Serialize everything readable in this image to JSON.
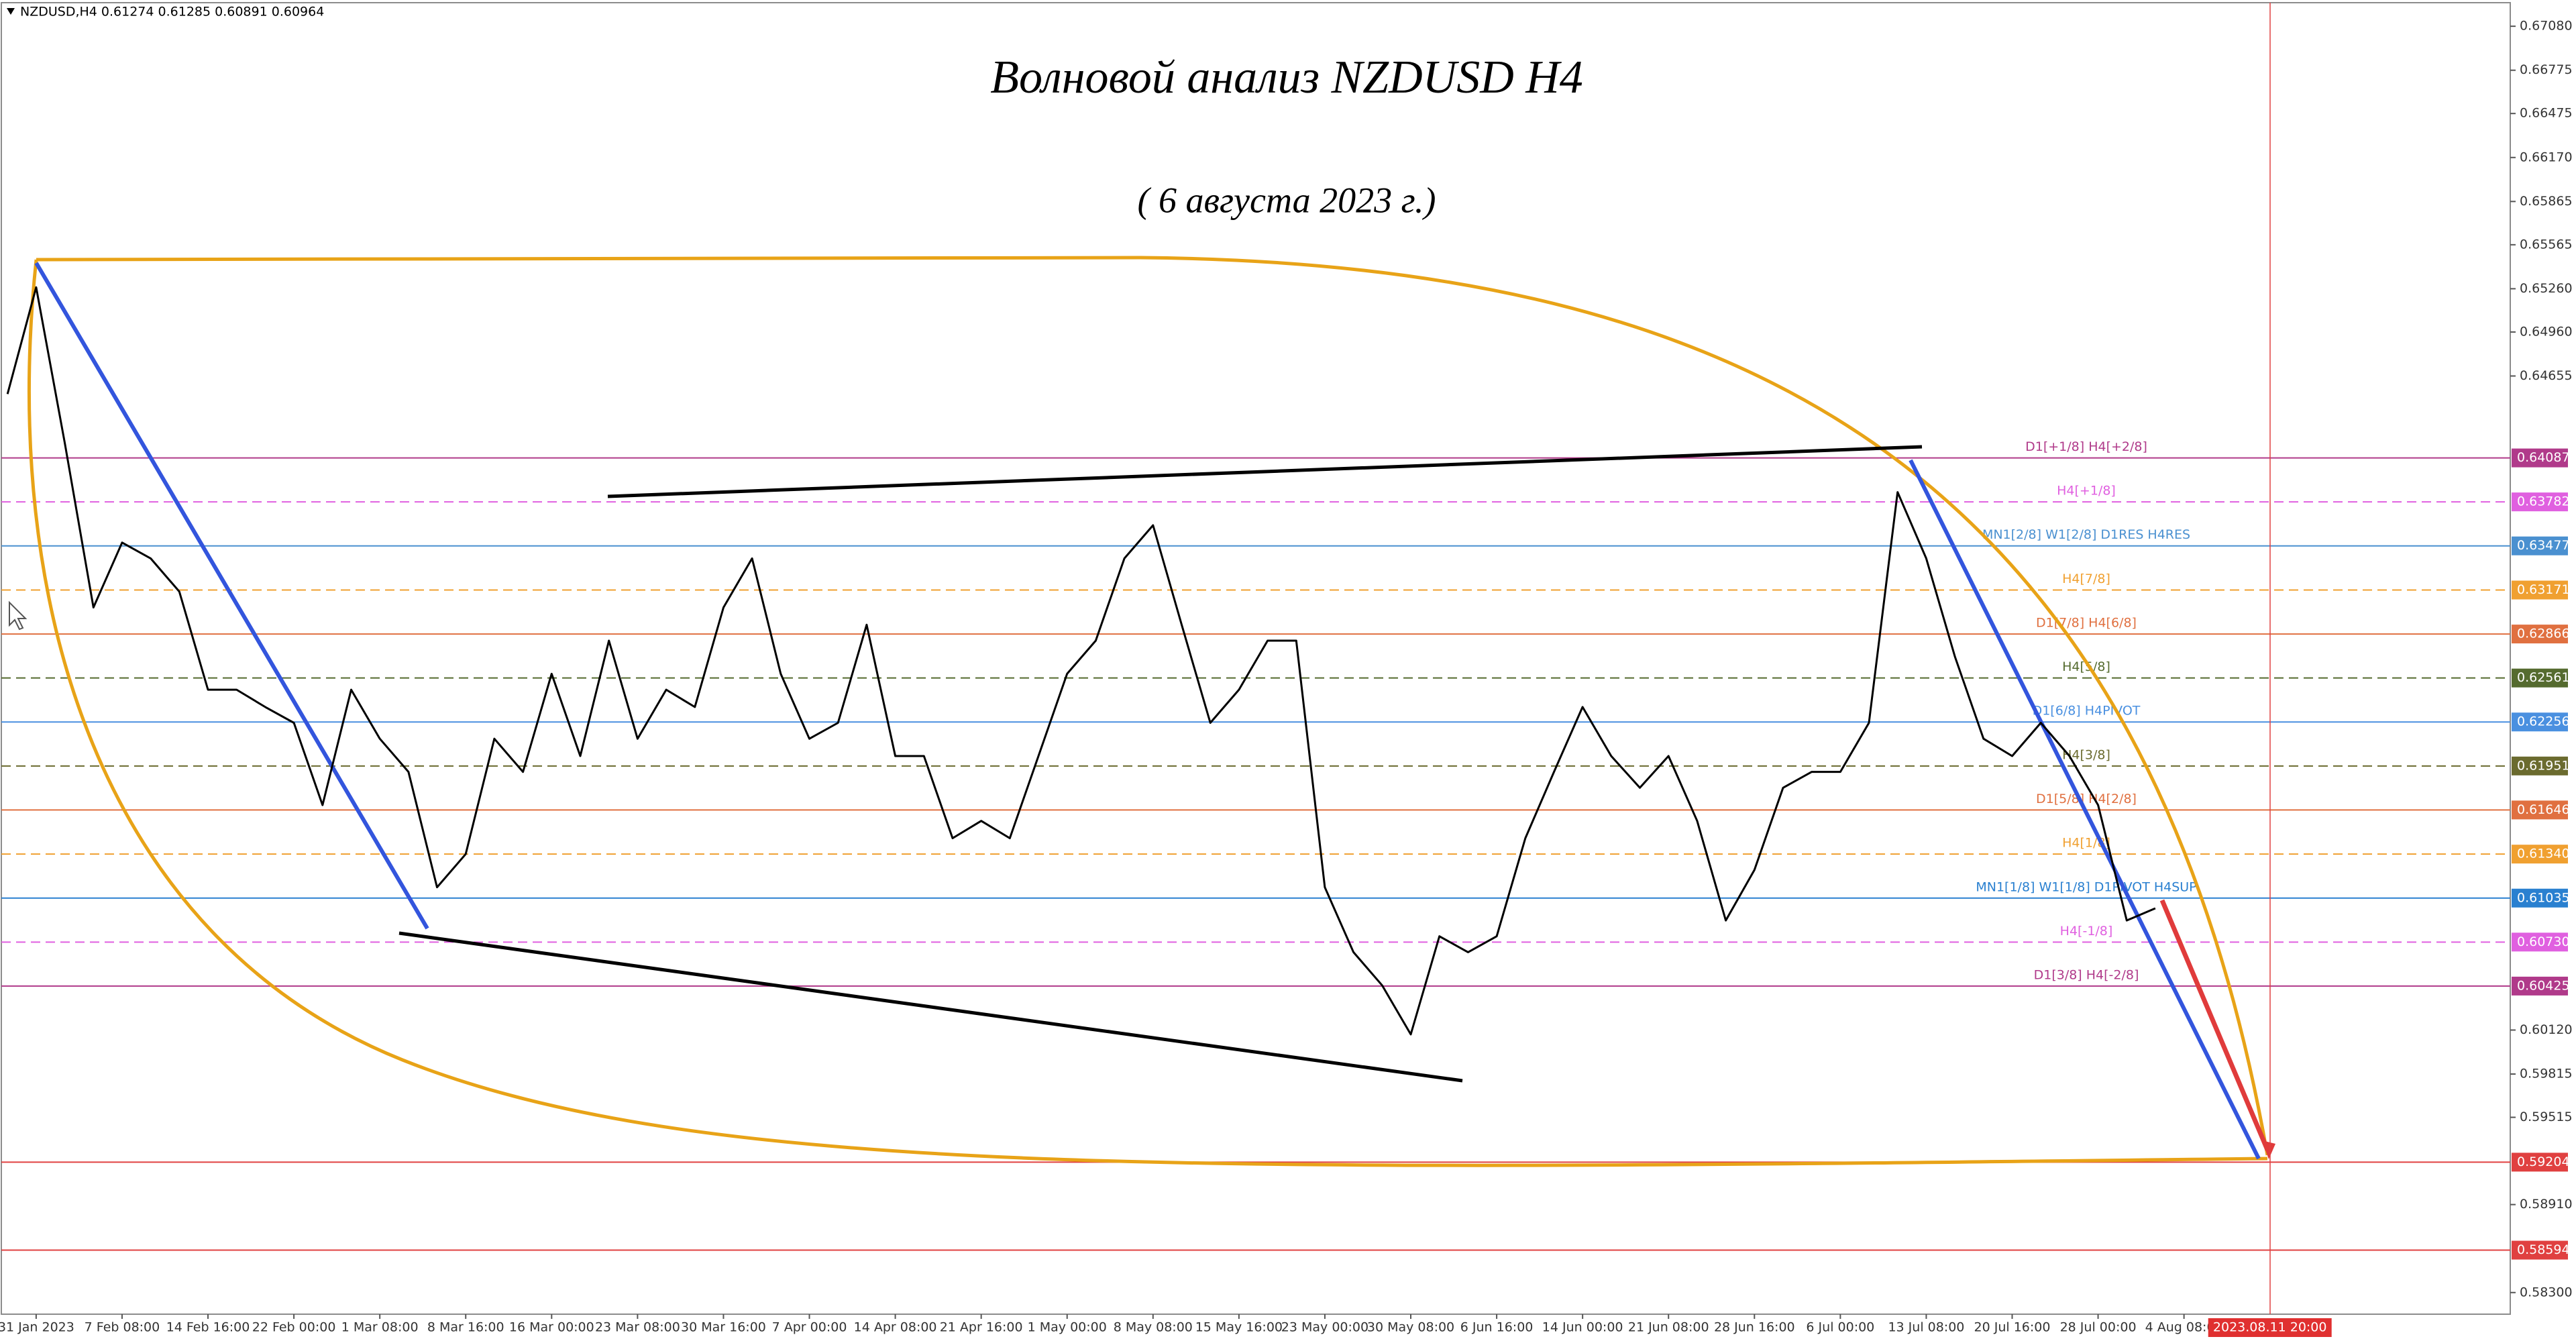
{
  "chart_data": {
    "type": "line",
    "header": "NZDUSD,H4  0.61274 0.61285 0.60891 0.60964",
    "title": "Волновой анализ NZDUSD H4",
    "subtitle": "( 6 августа 2023 г.)",
    "color": "#000000",
    "categories": [
      null,
      "31 Jan 2023",
      null,
      null,
      "7 Feb 08:00",
      null,
      null,
      "14 Feb 16:00",
      null,
      null,
      "22 Feb 00:00",
      null,
      null,
      "1 Mar 08:00",
      null,
      null,
      "8 Mar 16:00",
      null,
      null,
      "16 Mar 00:00",
      null,
      null,
      "23 Mar 08:00",
      null,
      null,
      "30 Mar 16:00",
      null,
      null,
      "7 Apr 00:00",
      null,
      null,
      "14 Apr 08:00",
      null,
      null,
      "21 Apr 16:00",
      null,
      null,
      "1 May 00:00",
      null,
      null,
      "8 May 08:00",
      null,
      null,
      "15 May 16:00",
      null,
      null,
      "23 May 00:00",
      null,
      null,
      "30 May 08:00",
      null,
      null,
      "6 Jun 16:00",
      null,
      null,
      "14 Jun 00:00",
      null,
      null,
      "21 Jun 08:00",
      null,
      null,
      "28 Jun 16:00",
      null,
      null,
      "6 Jul 00:00",
      null,
      null,
      "13 Jul 08:00",
      null,
      null,
      "20 Jul 16:00",
      null,
      null,
      "28 Jul 00:00",
      null,
      null,
      "4 Aug 08:00",
      null,
      null,
      null
    ],
    "values": [
      0.6453,
      0.6527,
      0.6419,
      0.6305,
      0.635,
      0.6339,
      0.6316,
      0.6248,
      0.6248,
      0.6236,
      0.6225,
      0.6168,
      0.6248,
      0.6214,
      0.6191,
      0.6111,
      0.6134,
      0.6214,
      0.6191,
      0.6259,
      0.6202,
      0.6282,
      0.6214,
      0.6248,
      0.6236,
      0.6305,
      0.6339,
      0.6259,
      0.6214,
      0.6225,
      0.6293,
      0.6202,
      0.6202,
      0.6145,
      0.6157,
      0.6145,
      0.6202,
      0.6259,
      0.6282,
      0.6339,
      0.6362,
      0.6293,
      0.6225,
      0.6248,
      0.6282,
      0.6282,
      0.6111,
      0.6066,
      0.6043,
      0.6009,
      0.6077,
      0.6066,
      0.6077,
      0.6145,
      0.6191,
      0.6236,
      0.6202,
      0.618,
      0.6202,
      0.6157,
      0.6088,
      0.6123,
      0.618,
      0.6191,
      0.6191,
      0.6225,
      0.6385,
      0.6339,
      0.6271,
      0.6214,
      0.6202,
      0.6225,
      0.6202,
      0.6168,
      0.6088,
      0.60964,
      null,
      null,
      null,
      null
    ],
    "cursor_label": "2023.08.11 20:00",
    "ylim": [
      0.5815,
      0.67262
    ],
    "yticks": [
      {
        "value": 0.6708,
        "label": "0.67080"
      },
      0.66775,
      0.66475,
      {
        "value": 0.6617,
        "label": "0.66170"
      },
      0.65865,
      0.65565,
      {
        "value": 0.6526,
        "label": "0.65260"
      },
      {
        "value": 0.6496,
        "label": "0.64960"
      },
      0.64655,
      {
        "value": 0.6012,
        "label": "0.60120"
      },
      0.59815,
      0.59515,
      {
        "value": 0.5891,
        "label": "0.58910"
      },
      {
        "value": 0.583,
        "label": "0.58300"
      }
    ],
    "levels": [
      {
        "value": 0.64087,
        "label": "0.64087",
        "name": "D1[+1/8] H4[+2/8]",
        "color": "#b03a8a",
        "dashed": false
      },
      {
        "value": 0.63782,
        "label": "0.63782",
        "name": "H4[+1/8]",
        "color": "#e060e0",
        "dashed": true
      },
      {
        "value": 0.63477,
        "label": "0.63477",
        "name": "MN1[2/8] W1[2/8] D1RES H4RES",
        "color": "#4a90d0",
        "dashed": false
      },
      {
        "value": 0.63171,
        "label": "0.63171",
        "name": "H4[7/8]",
        "color": "#f0a030",
        "dashed": true
      },
      {
        "value": 0.62866,
        "label": "0.62866",
        "name": "D1[7/8] H4[6/8]",
        "color": "#e07040",
        "dashed": false
      },
      {
        "value": 0.62561,
        "label": "0.62561",
        "name": "H4[5/8]",
        "color": "#556b2f",
        "dashed": true
      },
      {
        "value": 0.62256,
        "label": "0.62256",
        "name": "D1[6/8] H4PIVOT",
        "color": "#4a90e0",
        "dashed": false
      },
      {
        "value": 0.61951,
        "label": "0.61951",
        "name": "H4[3/8]",
        "color": "#6b6b2f",
        "dashed": true
      },
      {
        "value": 0.61646,
        "label": "0.61646",
        "name": "D1[5/8] H4[2/8]",
        "color": "#e07040",
        "dashed": false
      },
      {
        "value": 0.6134,
        "label": "0.61340",
        "name": "H4[1/8]",
        "color": "#f0a030",
        "dashed": true
      },
      {
        "value": 0.61035,
        "label": "0.61035",
        "name": "MN1[1/8] W1[1/8] D1PIVOT H4SUP",
        "color": "#2a80d0",
        "dashed": false
      },
      {
        "value": 0.6073,
        "label": "0.60730",
        "name": "H4[-1/8]",
        "color": "#e060e0",
        "dashed": true
      },
      {
        "value": 0.60425,
        "label": "0.60425",
        "name": "D1[3/8] H4[-2/8]",
        "color": "#b03a8a",
        "dashed": false
      },
      {
        "value": 0.59204,
        "label": "0.59204",
        "color": "#e04040",
        "dashed": false
      },
      {
        "value": 0.58594,
        "label": "0.58594",
        "color": "#e04040",
        "dashed": false
      }
    ]
  }
}
